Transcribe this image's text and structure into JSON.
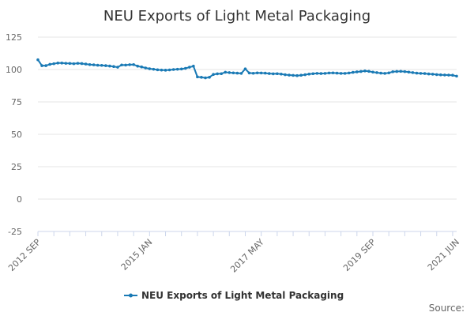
{
  "chart_data": {
    "type": "line",
    "title": "NEU Exports of Light Metal Packaging",
    "xlabel": "",
    "ylabel": "",
    "ylim": [
      -25,
      125
    ],
    "yticks": [
      -25,
      0,
      25,
      50,
      75,
      100,
      125
    ],
    "xtick_labels": [
      {
        "label": "2012 SEP",
        "index": 0
      },
      {
        "label": "2015 JAN",
        "index": 28
      },
      {
        "label": "2017 MAY",
        "index": 56
      },
      {
        "label": "2019 SEP",
        "index": 84
      },
      {
        "label": "2021 JUN",
        "index": 105
      }
    ],
    "grid": true,
    "legend_position": "bottom-center",
    "series": [
      {
        "name": "NEU Exports of Light Metal Packaging",
        "color": "#1a7ab5",
        "values": [
          107.5,
          103.0,
          103.0,
          104.0,
          104.5,
          105.0,
          105.0,
          104.8,
          104.7,
          104.5,
          104.8,
          104.6,
          104.2,
          103.8,
          103.6,
          103.3,
          103.2,
          103.0,
          102.7,
          102.3,
          101.8,
          103.5,
          103.4,
          103.7,
          103.8,
          102.6,
          102.0,
          101.2,
          100.6,
          100.2,
          99.8,
          99.6,
          99.5,
          99.7,
          100.0,
          100.2,
          100.4,
          100.9,
          101.8,
          102.6,
          94.3,
          94.0,
          93.6,
          94.0,
          96.2,
          96.7,
          96.8,
          97.9,
          97.6,
          97.4,
          97.2,
          97.0,
          100.5,
          97.3,
          97.1,
          97.4,
          97.3,
          97.2,
          96.9,
          96.7,
          96.8,
          96.5,
          96.0,
          95.7,
          95.5,
          95.3,
          95.6,
          96.0,
          96.5,
          96.8,
          97.0,
          96.9,
          97.0,
          97.3,
          97.4,
          97.2,
          97.0,
          97.0,
          97.3,
          97.8,
          98.2,
          98.5,
          98.9,
          98.6,
          98.0,
          97.6,
          97.2,
          97.0,
          97.4,
          98.3,
          98.5,
          98.6,
          98.4,
          98.0,
          97.6,
          97.2,
          97.0,
          96.9,
          96.6,
          96.4,
          96.1,
          95.9,
          95.8,
          95.7,
          95.6,
          94.9
        ]
      }
    ]
  },
  "source_label": "Source:"
}
